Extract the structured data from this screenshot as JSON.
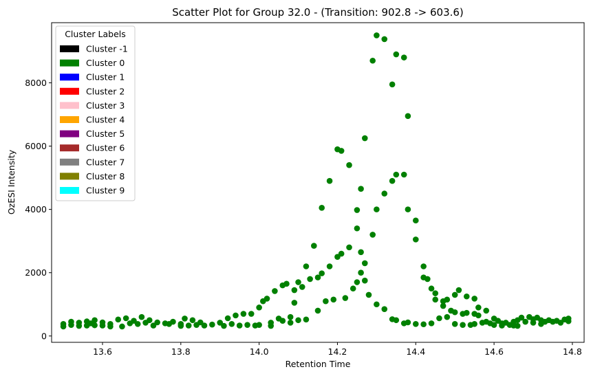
{
  "chart_data": {
    "type": "scatter",
    "title": "Scatter Plot for Group 32.0 -  (Transition: 902.8 -> 603.6)",
    "xlabel": "Retention Time",
    "ylabel": "OzESI Intensity",
    "xlim": [
      13.47,
      14.83
    ],
    "ylim": [
      -200,
      9900
    ],
    "xticks": [
      13.6,
      13.8,
      14.0,
      14.2,
      14.4,
      14.6,
      14.8
    ],
    "xtick_labels": [
      "13.6",
      "13.8",
      "14.0",
      "14.2",
      "14.4",
      "14.6",
      "14.8"
    ],
    "yticks": [
      0,
      2000,
      4000,
      6000,
      8000
    ],
    "ytick_labels": [
      "0",
      "2000",
      "4000",
      "6000",
      "8000"
    ],
    "grid": false,
    "legend": {
      "title": "Cluster Labels",
      "placement": "upper-left",
      "entries": [
        {
          "label": "Cluster -1",
          "color": "#000000"
        },
        {
          "label": "Cluster 0",
          "color": "#008000"
        },
        {
          "label": "Cluster 1",
          "color": "#0000ff"
        },
        {
          "label": "Cluster 2",
          "color": "#ff0000"
        },
        {
          "label": "Cluster 3",
          "color": "#ffc0cb"
        },
        {
          "label": "Cluster 4",
          "color": "#ffa500"
        },
        {
          "label": "Cluster 5",
          "color": "#800080"
        },
        {
          "label": "Cluster 6",
          "color": "#a52a2a"
        },
        {
          "label": "Cluster 7",
          "color": "#808080"
        },
        {
          "label": "Cluster 8",
          "color": "#808000"
        },
        {
          "label": "Cluster 9",
          "color": "#00ffff"
        }
      ]
    },
    "series": [
      {
        "color": "#008000",
        "points": [
          [
            13.5,
            380
          ],
          [
            13.5,
            300
          ],
          [
            13.52,
            450
          ],
          [
            13.52,
            350
          ],
          [
            13.54,
            420
          ],
          [
            13.54,
            320
          ],
          [
            13.56,
            460
          ],
          [
            13.56,
            330
          ],
          [
            13.57,
            400
          ],
          [
            13.58,
            500
          ],
          [
            13.58,
            340
          ],
          [
            13.6,
            430
          ],
          [
            13.6,
            330
          ],
          [
            13.62,
            380
          ],
          [
            13.62,
            300
          ],
          [
            13.64,
            520
          ],
          [
            13.65,
            300
          ],
          [
            13.66,
            560
          ],
          [
            13.67,
            400
          ],
          [
            13.68,
            480
          ],
          [
            13.69,
            380
          ],
          [
            13.7,
            600
          ],
          [
            13.71,
            420
          ],
          [
            13.72,
            500
          ],
          [
            13.73,
            330
          ],
          [
            13.74,
            430
          ],
          [
            13.76,
            400
          ],
          [
            13.77,
            380
          ],
          [
            13.78,
            450
          ],
          [
            13.8,
            380
          ],
          [
            13.8,
            320
          ],
          [
            13.81,
            550
          ],
          [
            13.82,
            330
          ],
          [
            13.83,
            500
          ],
          [
            13.84,
            350
          ],
          [
            13.85,
            430
          ],
          [
            13.86,
            330
          ],
          [
            13.88,
            360
          ],
          [
            13.9,
            420
          ],
          [
            13.91,
            320
          ],
          [
            13.92,
            560
          ],
          [
            13.93,
            380
          ],
          [
            13.94,
            650
          ],
          [
            13.95,
            330
          ],
          [
            13.96,
            700
          ],
          [
            13.97,
            350
          ],
          [
            13.98,
            700
          ],
          [
            13.99,
            330
          ],
          [
            14.0,
            900
          ],
          [
            14.0,
            350
          ],
          [
            14.01,
            1100
          ],
          [
            14.02,
            1180
          ],
          [
            14.03,
            420
          ],
          [
            14.03,
            320
          ],
          [
            14.04,
            1420
          ],
          [
            14.05,
            550
          ],
          [
            14.06,
            1600
          ],
          [
            14.06,
            480
          ],
          [
            14.07,
            1650
          ],
          [
            14.08,
            600
          ],
          [
            14.08,
            420
          ],
          [
            14.09,
            1050
          ],
          [
            14.09,
            1450
          ],
          [
            14.1,
            1700
          ],
          [
            14.1,
            500
          ],
          [
            14.11,
            1550
          ],
          [
            14.12,
            2200
          ],
          [
            14.12,
            520
          ],
          [
            14.13,
            1800
          ],
          [
            14.14,
            2850
          ],
          [
            14.15,
            1850
          ],
          [
            14.15,
            800
          ],
          [
            14.16,
            4050
          ],
          [
            14.16,
            1980
          ],
          [
            14.17,
            1100
          ],
          [
            14.18,
            4900
          ],
          [
            14.18,
            2200
          ],
          [
            14.19,
            1150
          ],
          [
            14.2,
            5900
          ],
          [
            14.2,
            2500
          ],
          [
            14.21,
            5850
          ],
          [
            14.21,
            2600
          ],
          [
            14.22,
            1200
          ],
          [
            14.23,
            5400
          ],
          [
            14.23,
            2800
          ],
          [
            14.24,
            1500
          ],
          [
            14.25,
            3400
          ],
          [
            14.25,
            3980
          ],
          [
            14.25,
            1700
          ],
          [
            14.26,
            4650
          ],
          [
            14.26,
            2650
          ],
          [
            14.26,
            2000
          ],
          [
            14.27,
            6250
          ],
          [
            14.27,
            2300
          ],
          [
            14.27,
            1750
          ],
          [
            14.28,
            1300
          ],
          [
            14.29,
            8700
          ],
          [
            14.29,
            3200
          ],
          [
            14.3,
            9500
          ],
          [
            14.3,
            4000
          ],
          [
            14.3,
            1000
          ],
          [
            14.32,
            9380
          ],
          [
            14.32,
            4500
          ],
          [
            14.32,
            850
          ],
          [
            14.34,
            7950
          ],
          [
            14.34,
            4900
          ],
          [
            14.34,
            530
          ],
          [
            14.35,
            8900
          ],
          [
            14.35,
            5100
          ],
          [
            14.35,
            500
          ],
          [
            14.37,
            8800
          ],
          [
            14.37,
            5100
          ],
          [
            14.37,
            400
          ],
          [
            14.38,
            6950
          ],
          [
            14.38,
            4000
          ],
          [
            14.38,
            430
          ],
          [
            14.4,
            3650
          ],
          [
            14.4,
            3050
          ],
          [
            14.4,
            380
          ],
          [
            14.42,
            2200
          ],
          [
            14.42,
            1850
          ],
          [
            14.42,
            370
          ],
          [
            14.43,
            1800
          ],
          [
            14.44,
            1500
          ],
          [
            14.44,
            400
          ],
          [
            14.45,
            1350
          ],
          [
            14.45,
            1150
          ],
          [
            14.46,
            560
          ],
          [
            14.47,
            950
          ],
          [
            14.47,
            1100
          ],
          [
            14.48,
            600
          ],
          [
            14.48,
            1150
          ],
          [
            14.49,
            800
          ],
          [
            14.5,
            1300
          ],
          [
            14.5,
            750
          ],
          [
            14.5,
            380
          ],
          [
            14.51,
            1450
          ],
          [
            14.52,
            700
          ],
          [
            14.52,
            350
          ],
          [
            14.53,
            1250
          ],
          [
            14.53,
            730
          ],
          [
            14.54,
            350
          ],
          [
            14.55,
            1180
          ],
          [
            14.55,
            700
          ],
          [
            14.55,
            380
          ],
          [
            14.56,
            900
          ],
          [
            14.56,
            650
          ],
          [
            14.57,
            420
          ],
          [
            14.58,
            800
          ],
          [
            14.58,
            450
          ],
          [
            14.59,
            400
          ],
          [
            14.6,
            550
          ],
          [
            14.6,
            350
          ],
          [
            14.61,
            480
          ],
          [
            14.62,
            400
          ],
          [
            14.62,
            330
          ],
          [
            14.63,
            420
          ],
          [
            14.64,
            350
          ],
          [
            14.65,
            450
          ],
          [
            14.65,
            330
          ],
          [
            14.66,
            500
          ],
          [
            14.66,
            320
          ],
          [
            14.67,
            580
          ],
          [
            14.68,
            450
          ],
          [
            14.69,
            600
          ],
          [
            14.7,
            530
          ],
          [
            14.7,
            420
          ],
          [
            14.71,
            580
          ],
          [
            14.72,
            500
          ],
          [
            14.72,
            380
          ],
          [
            14.73,
            450
          ],
          [
            14.74,
            500
          ],
          [
            14.75,
            450
          ],
          [
            14.76,
            480
          ],
          [
            14.77,
            420
          ],
          [
            14.78,
            520
          ],
          [
            14.79,
            470
          ],
          [
            14.79,
            550
          ]
        ]
      }
    ]
  }
}
